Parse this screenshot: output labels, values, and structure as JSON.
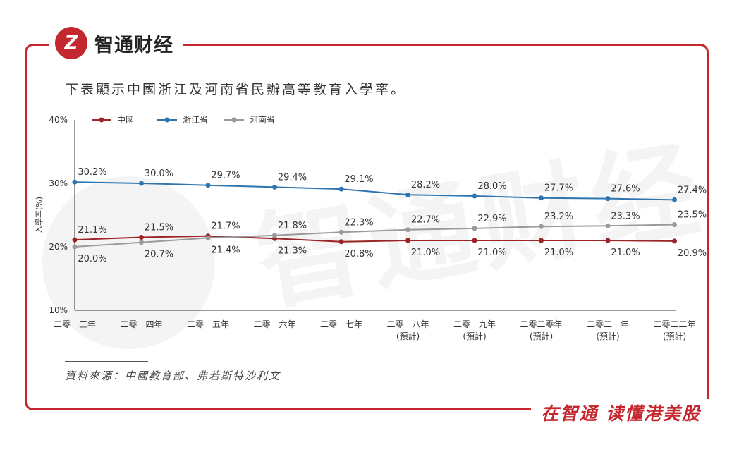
{
  "brand": {
    "logo_glyph": "Z",
    "name": "智通财经",
    "slogan": "在智通 读懂港美股"
  },
  "watermark": {
    "text": "智通财经"
  },
  "title": "下表顯示中國浙江及河南省民辦高等教育入學率。",
  "source": "資料來源：中國教育部、弗若斯特沙利文",
  "colors": {
    "frame": "#c4272e",
    "china": "#9b2424",
    "zhejiang": "#2e75b0",
    "henan": "#9a9a9a"
  },
  "chart_data": {
    "type": "line",
    "title": "",
    "ylabel": "入學率(%)",
    "xlabel": "",
    "ylim": [
      10,
      40
    ],
    "yticks": [
      "10%",
      "20%",
      "30%",
      "40%"
    ],
    "yticks_values": [
      10,
      20,
      30,
      40
    ],
    "categories": [
      [
        "二零一三年"
      ],
      [
        "二零一四年"
      ],
      [
        "二零一五年"
      ],
      [
        "二零一六年"
      ],
      [
        "二零一七年"
      ],
      [
        "二零一八年",
        "(預計)"
      ],
      [
        "二零一九年",
        "(預計)"
      ],
      [
        "二零二零年",
        "(預計)"
      ],
      [
        "二零二一年",
        "(預計)"
      ],
      [
        "二零二二年",
        "(預計)"
      ]
    ],
    "legend_position": "top-left",
    "grid": false,
    "series": [
      {
        "name": "中國",
        "key": "china",
        "values": [
          21.1,
          21.5,
          21.7,
          21.3,
          20.8,
          21.0,
          21.0,
          21.0,
          21.0,
          20.9
        ],
        "labels": [
          "21.1%",
          "21.5%",
          "21.7%",
          "21.3%",
          "20.8%",
          "21.0%",
          "21.0%",
          "21.0%",
          "21.0%",
          "20.9%"
        ],
        "label_side": [
          "above",
          "above",
          "above",
          "below",
          "below",
          "below",
          "below",
          "below",
          "below",
          "below"
        ]
      },
      {
        "name": "浙江省",
        "key": "zhejiang",
        "values": [
          30.2,
          30.0,
          29.7,
          29.4,
          29.1,
          28.2,
          28.0,
          27.7,
          27.6,
          27.4
        ],
        "labels": [
          "30.2%",
          "30.0%",
          "29.7%",
          "29.4%",
          "29.1%",
          "28.2%",
          "28.0%",
          "27.7%",
          "27.6%",
          "27.4%"
        ],
        "label_side": [
          "above",
          "above",
          "above",
          "above",
          "above",
          "above",
          "above",
          "above",
          "above",
          "above"
        ]
      },
      {
        "name": "河南省",
        "key": "henan",
        "values": [
          20.0,
          20.7,
          21.4,
          21.8,
          22.3,
          22.7,
          22.9,
          23.2,
          23.3,
          23.5
        ],
        "labels": [
          "20.0%",
          "20.7%",
          "21.4%",
          "21.8%",
          "22.3%",
          "22.7%",
          "22.9%",
          "23.2%",
          "23.3%",
          "23.5%"
        ],
        "label_side": [
          "below",
          "below",
          "below",
          "above",
          "above",
          "above",
          "above",
          "above",
          "above",
          "above"
        ]
      }
    ]
  }
}
